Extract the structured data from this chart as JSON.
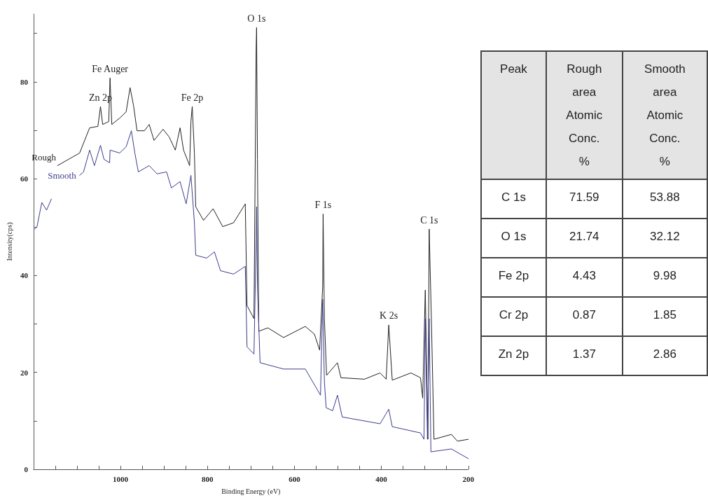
{
  "chart_data": [
    {
      "type": "line",
      "xlabel": "Binding Energy (eV)",
      "ylabel": "Intensity(cps)",
      "xlim": [
        1200,
        200
      ],
      "xticks": [
        {
          "value": 1200,
          "label": null
        },
        {
          "value": 1150,
          "label": null
        },
        {
          "value": 1100,
          "label": null
        },
        {
          "value": 1050,
          "label": null
        },
        1000,
        {
          "value": 950,
          "label": null
        },
        {
          "value": 900,
          "label": null
        },
        {
          "value": 850,
          "label": null
        },
        800,
        {
          "value": 750,
          "label": null
        },
        {
          "value": 700,
          "label": null
        },
        {
          "value": 650,
          "label": null
        },
        600,
        {
          "value": 550,
          "label": null
        },
        {
          "value": 500,
          "label": null
        },
        {
          "value": 450,
          "label": null
        },
        400,
        {
          "value": 350,
          "label": null
        },
        {
          "value": 300,
          "label": null
        },
        {
          "value": 250,
          "label": null
        },
        200
      ],
      "ylim": [
        0,
        94
      ],
      "yticks": [
        0,
        {
          "value": 10,
          "label": null
        },
        20,
        {
          "value": 30,
          "label": null
        },
        40,
        {
          "value": 50,
          "label": null
        },
        60,
        {
          "value": 70,
          "label": null
        },
        80,
        {
          "value": 90,
          "label": null
        }
      ],
      "grid": false,
      "legend": false,
      "line_style": "solid",
      "series": [
        {
          "name": "Rough",
          "color": "#222222",
          "x": [
            1145,
            1094,
            1071,
            1052,
            1046,
            1041,
            1027,
            1024,
            1020,
            1002,
            987,
            978,
            970,
            962,
            945,
            934,
            923,
            902,
            888,
            874,
            863,
            855,
            841,
            838,
            835,
            830,
            827,
            809,
            787,
            765,
            740,
            713,
            709,
            693,
            688,
            687,
            685,
            682,
            661,
            625,
            575,
            554,
            542,
            535,
            534,
            531,
            526,
            501,
            493,
            439,
            403,
            389,
            383,
            375,
            332,
            310,
            305,
            299,
            293,
            290,
            285,
            279,
            239,
            225,
            200
          ],
          "values": [
            62.7,
            65.3,
            70.5,
            70.8,
            74.9,
            71.2,
            71.8,
            80.8,
            71.2,
            72.5,
            73.8,
            78.8,
            75.1,
            69.9,
            69.9,
            71.2,
            67.9,
            70.2,
            68.6,
            65.9,
            70.5,
            65.9,
            62.7,
            71.8,
            74.9,
            65.3,
            54.2,
            51.4,
            53.8,
            50.1,
            50.9,
            54.8,
            33.8,
            31.1,
            87,
            91.2,
            64,
            28.5,
            29.2,
            27.2,
            29.5,
            27.9,
            24.6,
            37.7,
            52.7,
            31.1,
            19.4,
            22,
            18.9,
            18.6,
            19.9,
            18.6,
            29.8,
            18.4,
            19.9,
            18.9,
            14.7,
            37,
            6.2,
            49.6,
            31.1,
            6.2,
            7.2,
            5.8,
            6.2
          ]
        },
        {
          "name": "Smooth",
          "color": "#3c3c8c",
          "x": [
            1197,
            1192,
            1181,
            1170,
            1159,
            1130,
            1094,
            1085,
            1071,
            1060,
            1046,
            1038,
            1025,
            1024,
            1002,
            987,
            975,
            967,
            959,
            934,
            916,
            894,
            883,
            863,
            849,
            838,
            830,
            827,
            802,
            784,
            770,
            740,
            713,
            709,
            693,
            688,
            687,
            685,
            679,
            625,
            575,
            540,
            535,
            531,
            527,
            512,
            501,
            490,
            403,
            383,
            375,
            310,
            302,
            299,
            294,
            290,
            286,
            239,
            200
          ],
          "values": [
            49.6,
            50.1,
            55.1,
            53.5,
            55.8,
            null,
            60.7,
            61.4,
            65.9,
            62.7,
            66.9,
            64,
            63.3,
            65.9,
            65.3,
            66.6,
            69.9,
            65.3,
            61.4,
            62.7,
            61,
            61.4,
            58.1,
            59.4,
            54.8,
            60.7,
            50.9,
            44.2,
            43.6,
            44.9,
            41,
            40.3,
            41.9,
            25.3,
            23.8,
            47.5,
            54.2,
            37.7,
            22,
            20.7,
            20.7,
            15.3,
            35.1,
            18.1,
            12.7,
            12.1,
            15.3,
            10.8,
            9.4,
            12.4,
            8.8,
            7.5,
            6.2,
            31.1,
            6.2,
            31.1,
            3.6,
            4.2,
            2.2
          ]
        }
      ],
      "annotations": [
        {
          "text": "Fe Auger",
          "x": 1024,
          "y": 80.8
        },
        {
          "text": "Zn 2p",
          "x": 1046,
          "y": 74.9
        },
        {
          "text": "Fe 2p",
          "x": 835,
          "y": 74.9
        },
        {
          "text": "O 1s",
          "x": 687,
          "y": 91.2
        },
        {
          "text": "F 1s",
          "x": 534,
          "y": 52.7
        },
        {
          "text": "K 2s",
          "x": 383,
          "y": 29.8
        },
        {
          "text": "C 1s",
          "x": 290,
          "y": 49.6
        }
      ]
    },
    {
      "type": "other",
      "xlabel": "Peak",
      "categories": [
        "C 1s",
        "O 1s",
        "Fe 2p",
        "Cr 2p",
        "Zn 2p"
      ],
      "data_labels": true,
      "series": [
        {
          "name": "Rough area Atomic Conc. %",
          "values": [
            71.59,
            21.74,
            4.43,
            0.87,
            1.37
          ]
        },
        {
          "name": "Smooth area Atomic Conc. %",
          "values": [
            53.88,
            32.12,
            9.98,
            1.85,
            2.86
          ]
        }
      ]
    }
  ]
}
